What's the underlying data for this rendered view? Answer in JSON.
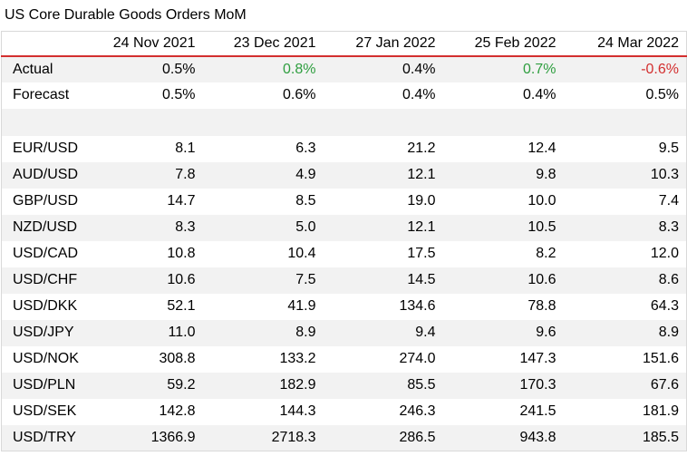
{
  "title": "US Core Durable Goods Orders MoM",
  "colors": {
    "positive": "#2e9e3f",
    "negative": "#d32f2f",
    "header_rule": "#d32f2f",
    "row_shade": "#f2f2f2"
  },
  "chart_data": {
    "type": "table",
    "title": "US Core Durable Goods Orders MoM",
    "columns": [
      "24 Nov 2021",
      "23 Dec 2021",
      "27 Jan 2022",
      "25 Feb 2022",
      "24 Mar 2022"
    ],
    "rows": [
      {
        "label": "Actual",
        "values": [
          "0.5%",
          "0.8%",
          "0.4%",
          "0.7%",
          "-0.6%"
        ],
        "styles": [
          "",
          "pos",
          "",
          "pos",
          "neg"
        ]
      },
      {
        "label": "Forecast",
        "values": [
          "0.5%",
          "0.6%",
          "0.4%",
          "0.4%",
          "0.5%"
        ]
      },
      {
        "label": "",
        "values": [
          "",
          "",
          "",
          "",
          ""
        ]
      },
      {
        "label": "EUR/USD",
        "values": [
          "8.1",
          "6.3",
          "21.2",
          "12.4",
          "9.5"
        ]
      },
      {
        "label": "AUD/USD",
        "values": [
          "7.8",
          "4.9",
          "12.1",
          "9.8",
          "10.3"
        ]
      },
      {
        "label": "GBP/USD",
        "values": [
          "14.7",
          "8.5",
          "19.0",
          "10.0",
          "7.4"
        ]
      },
      {
        "label": "NZD/USD",
        "values": [
          "8.3",
          "5.0",
          "12.1",
          "10.5",
          "8.3"
        ]
      },
      {
        "label": "USD/CAD",
        "values": [
          "10.8",
          "10.4",
          "17.5",
          "8.2",
          "12.0"
        ]
      },
      {
        "label": "USD/CHF",
        "values": [
          "10.6",
          "7.5",
          "14.5",
          "10.6",
          "8.6"
        ]
      },
      {
        "label": "USD/DKK",
        "values": [
          "52.1",
          "41.9",
          "134.6",
          "78.8",
          "64.3"
        ]
      },
      {
        "label": "USD/JPY",
        "values": [
          "11.0",
          "8.9",
          "9.4",
          "9.6",
          "8.9"
        ]
      },
      {
        "label": "USD/NOK",
        "values": [
          "308.8",
          "133.2",
          "274.0",
          "147.3",
          "151.6"
        ]
      },
      {
        "label": "USD/PLN",
        "values": [
          "59.2",
          "182.9",
          "85.5",
          "170.3",
          "67.6"
        ]
      },
      {
        "label": "USD/SEK",
        "values": [
          "142.8",
          "144.3",
          "246.3",
          "241.5",
          "181.9"
        ]
      },
      {
        "label": "USD/TRY",
        "values": [
          "1366.9",
          "2718.3",
          "286.5",
          "943.8",
          "185.5"
        ]
      }
    ]
  }
}
